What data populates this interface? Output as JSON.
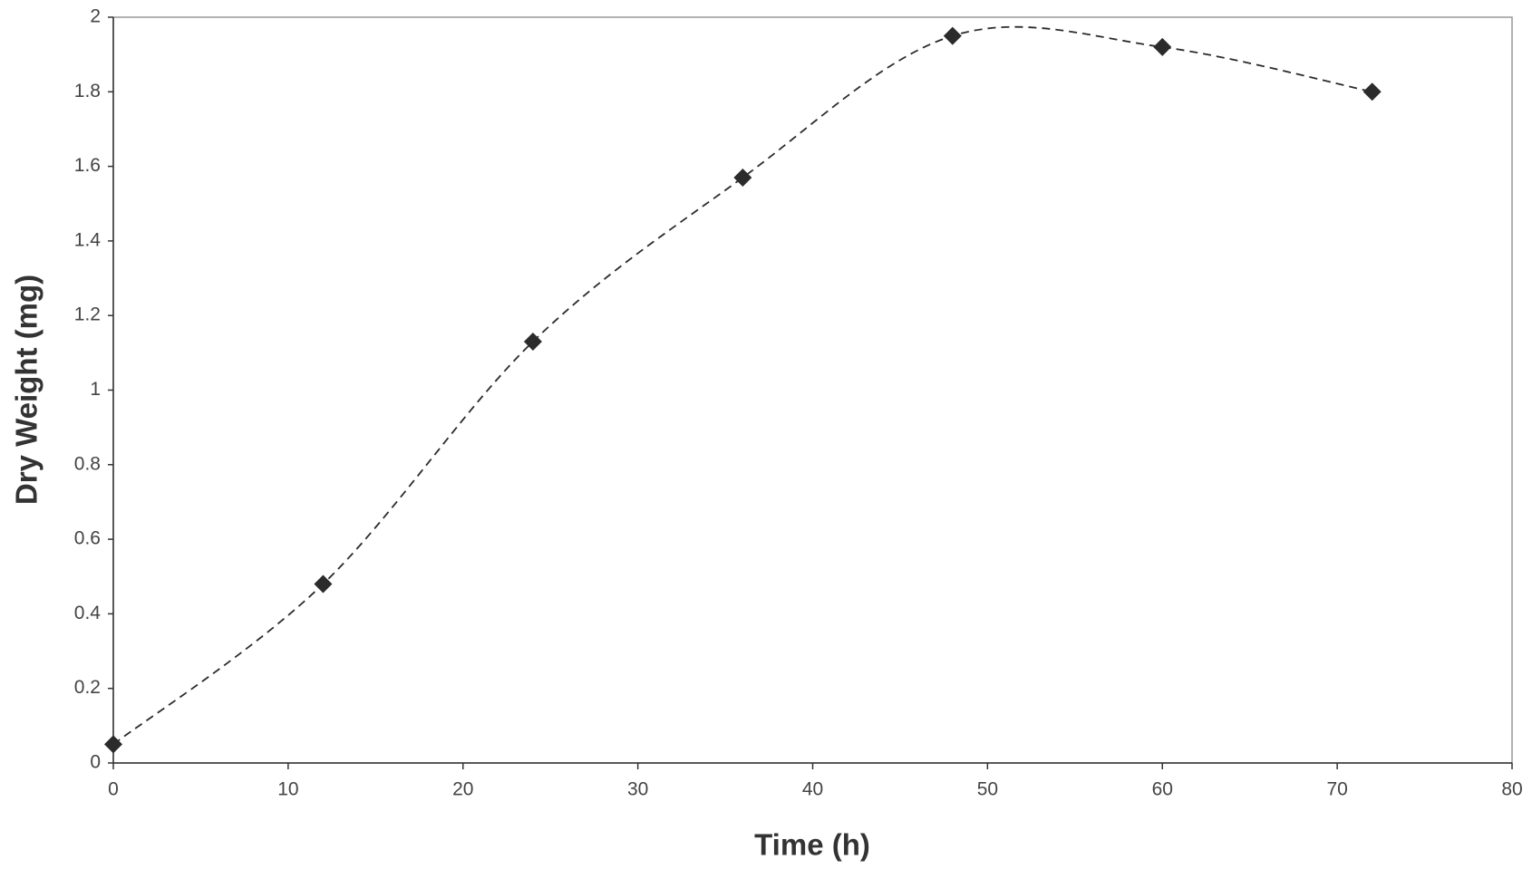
{
  "chart_data": {
    "type": "line",
    "x_label": "Time (h)",
    "y_label": "Dry Weight (mg)",
    "x": [
      0,
      12,
      24,
      36,
      48,
      60,
      72
    ],
    "series": [
      {
        "color": "#2b2b2b",
        "values": [
          0.05,
          0.48,
          1.13,
          1.57,
          1.95,
          1.92,
          1.8
        ]
      }
    ],
    "xlim": [
      0,
      80
    ],
    "xticks": [
      0,
      10,
      20,
      30,
      40,
      50,
      60,
      70,
      80
    ],
    "ylim": [
      0,
      2
    ],
    "yticks": [
      0,
      0.2,
      0.4,
      0.6,
      0.8,
      1,
      1.2,
      1.4,
      1.6,
      1.8,
      2
    ],
    "line_style": "dashed",
    "smooth": true,
    "marker": "diamond"
  }
}
